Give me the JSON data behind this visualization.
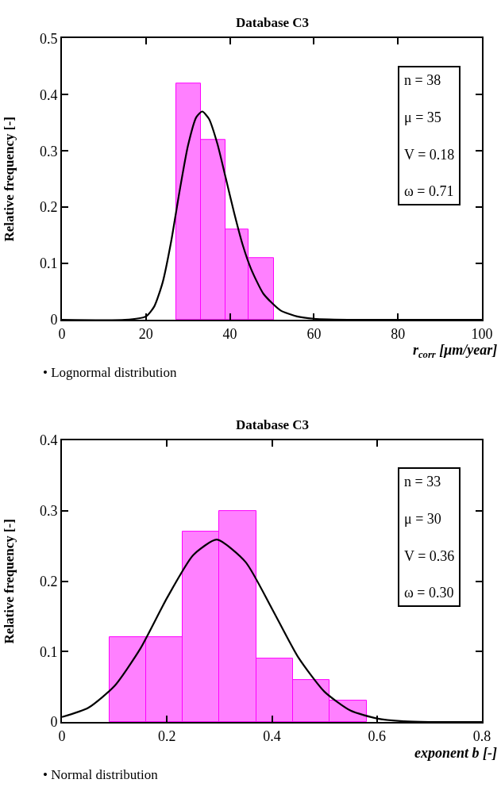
{
  "chart_data": [
    {
      "type": "histogram",
      "title": "Database C3",
      "xlabel": "r$_{corr}$ [μm/year]",
      "ylabel": "Relative frequency [-]",
      "bins": [
        27.2,
        33.1,
        39.0,
        44.5,
        50.4
      ],
      "values": [
        0.42,
        0.32,
        0.16,
        0.11
      ],
      "color": "#ff80ff",
      "series": [
        {
          "type": "line",
          "color": "#000000",
          "x": [
            0,
            15,
            20,
            22,
            24,
            26,
            28,
            30,
            32,
            33.4,
            35,
            37,
            39,
            41,
            43,
            45,
            48,
            52,
            56,
            60,
            70,
            100
          ],
          "values": [
            0,
            0,
            0.006,
            0.024,
            0.067,
            0.139,
            0.228,
            0.309,
            0.36,
            0.37,
            0.357,
            0.313,
            0.252,
            0.19,
            0.134,
            0.091,
            0.046,
            0.017,
            0.006,
            0.002,
            0,
            0
          ]
        }
      ],
      "xlim": [
        0,
        100
      ],
      "xticks": [
        0,
        20,
        40,
        60,
        80,
        100
      ],
      "ylim": [
        0,
        0.5
      ],
      "yticks": [
        0,
        0.1,
        0.2,
        0.3,
        0.4,
        0.5
      ],
      "annotations": [
        "n = 38\nμ = 35\nV = 0.18\nω = 0.71",
        "• Lognormal distribution"
      ]
    },
    {
      "type": "histogram",
      "title": "Database C3",
      "xlabel": "exponent b [-]",
      "ylabel": "Relative frequency [-]",
      "bins": [
        0.09,
        0.16,
        0.23,
        0.3,
        0.37,
        0.44,
        0.51,
        0.58
      ],
      "values": [
        0.12,
        0.12,
        0.27,
        0.3,
        0.09,
        0.06,
        0.03
      ],
      "color": "#ff80ff",
      "series": [
        {
          "type": "line",
          "color": "#000000",
          "x": [
            0,
            0.05,
            0.1,
            0.15,
            0.2,
            0.25,
            0.295,
            0.35,
            0.4,
            0.45,
            0.5,
            0.55,
            0.6,
            0.65,
            0.7,
            0.8
          ],
          "values": [
            0.007,
            0.02,
            0.051,
            0.105,
            0.176,
            0.237,
            0.259,
            0.227,
            0.161,
            0.092,
            0.043,
            0.016,
            0.005,
            0.001,
            0,
            0
          ]
        }
      ],
      "xlim": [
        0,
        0.8
      ],
      "xticks": [
        0,
        0.2,
        0.4,
        0.6,
        0.8
      ],
      "ylim": [
        0,
        0.4
      ],
      "yticks": [
        0,
        0.1,
        0.2,
        0.3,
        0.4
      ],
      "annotations": [
        "n = 33\nμ = 30\nV = 0.36\nω = 0.30",
        "• Normal distribution"
      ]
    }
  ]
}
